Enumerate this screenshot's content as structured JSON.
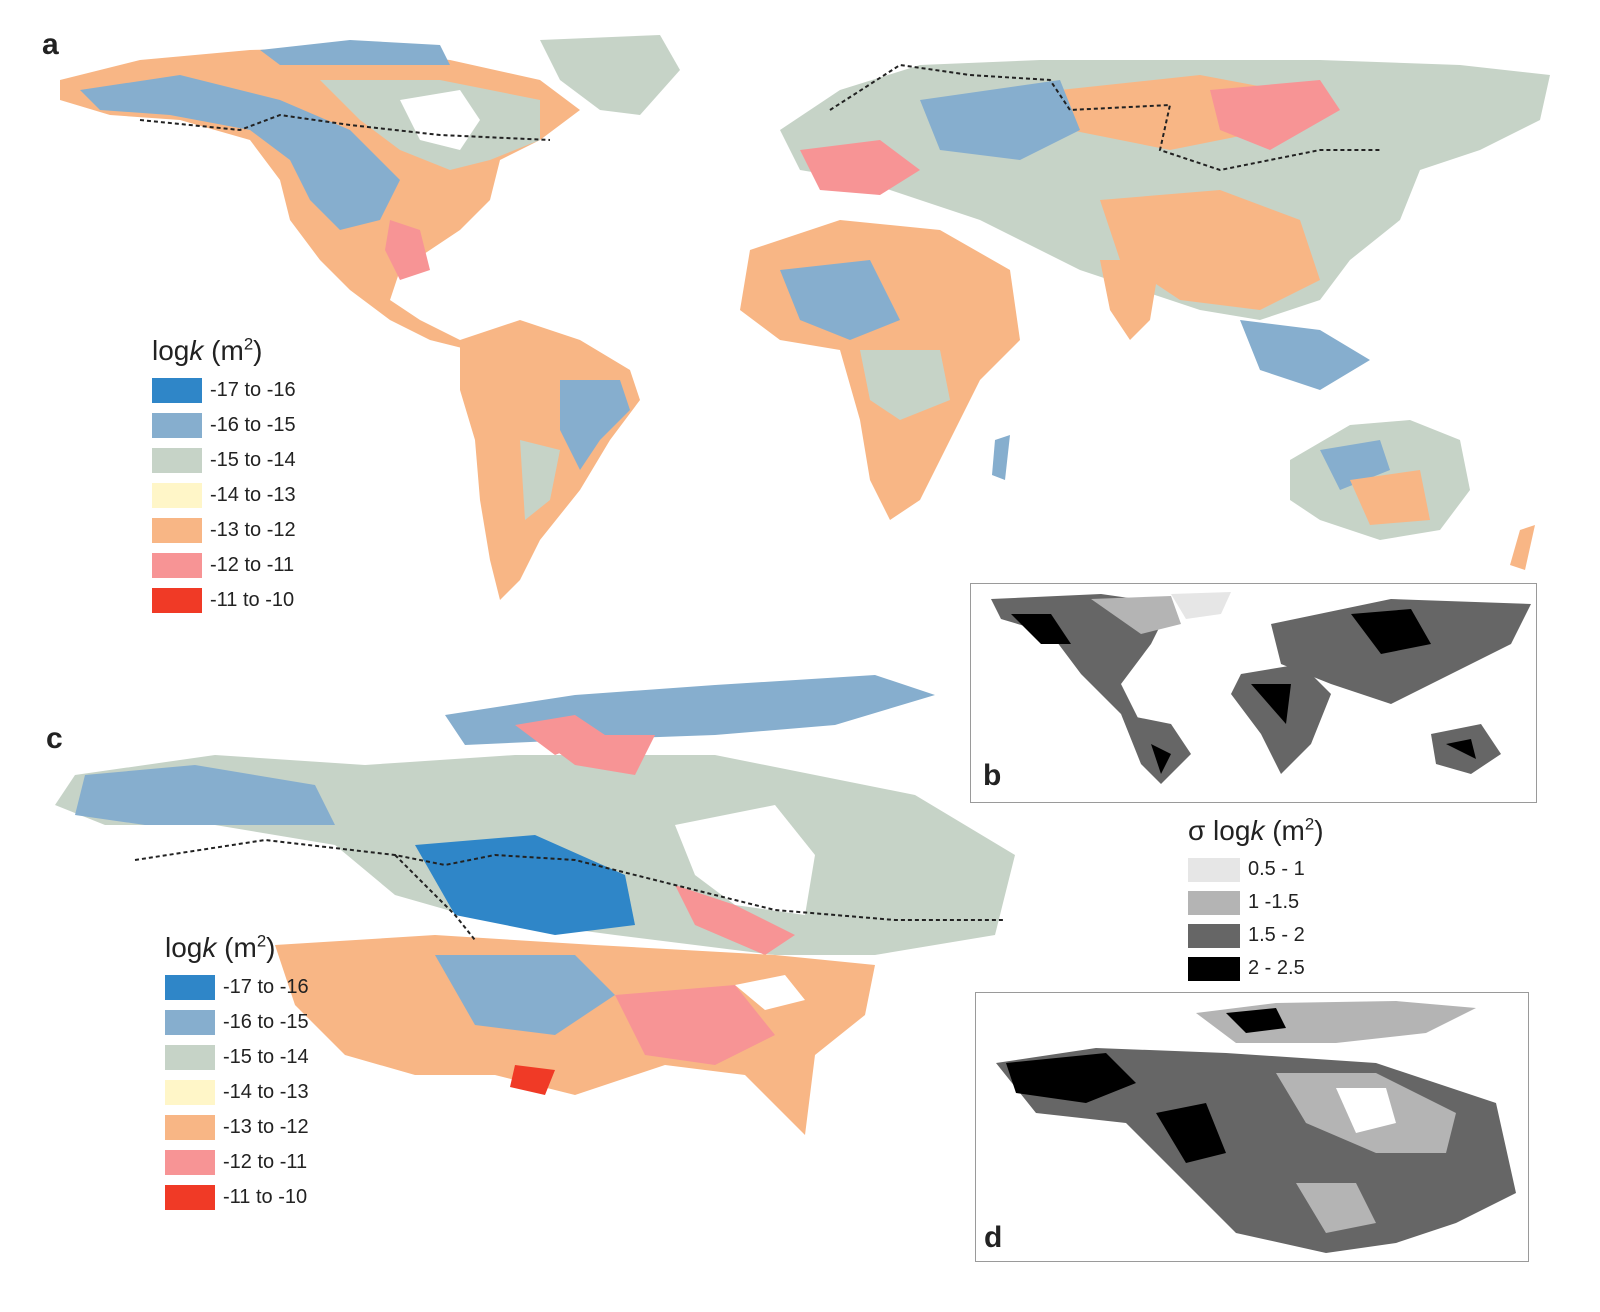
{
  "panels": {
    "a": {
      "letter": "a"
    },
    "b": {
      "letter": "b"
    },
    "c": {
      "letter": "c"
    },
    "d": {
      "letter": "d"
    }
  },
  "legend_logk": {
    "title_main": "log",
    "title_var": "k",
    "title_unit_open": " (m",
    "title_unit_exp": "2",
    "title_unit_close": ")",
    "items": [
      {
        "label": "-17 to -16",
        "color": "#2f86c8"
      },
      {
        "label": "-16 to -15",
        "color": "#86aece"
      },
      {
        "label": "-15 to -14",
        "color": "#c6d3c7"
      },
      {
        "label": "-14 to -13",
        "color": "#fff6c8"
      },
      {
        "label": "-13 to -12",
        "color": "#f8b685"
      },
      {
        "label": "-12 to -11",
        "color": "#f79495"
      },
      {
        "label": "-11 to -10",
        "color": "#f03a26"
      }
    ]
  },
  "legend_sigma": {
    "title_sigma": "σ",
    "title_main": " log",
    "title_var": "k",
    "title_unit_open": " (m",
    "title_unit_exp": "2",
    "title_unit_close": ")",
    "items": [
      {
        "label": "0.5 - 1",
        "color": "#e6e6e6"
      },
      {
        "label": "1 -1.5",
        "color": "#b4b4b4"
      },
      {
        "label": "1.5 - 2",
        "color": "#666666"
      },
      {
        "label": "2 - 2.5",
        "color": "#000000"
      }
    ]
  },
  "colors": {
    "land_orange": "#f8b685",
    "land_blue": "#86aece",
    "land_gray": "#c6d3c7",
    "land_pink": "#f79495",
    "land_dark_blue": "#2f86c8",
    "land_red": "#f03a26",
    "permafrost_line": "#222222"
  }
}
